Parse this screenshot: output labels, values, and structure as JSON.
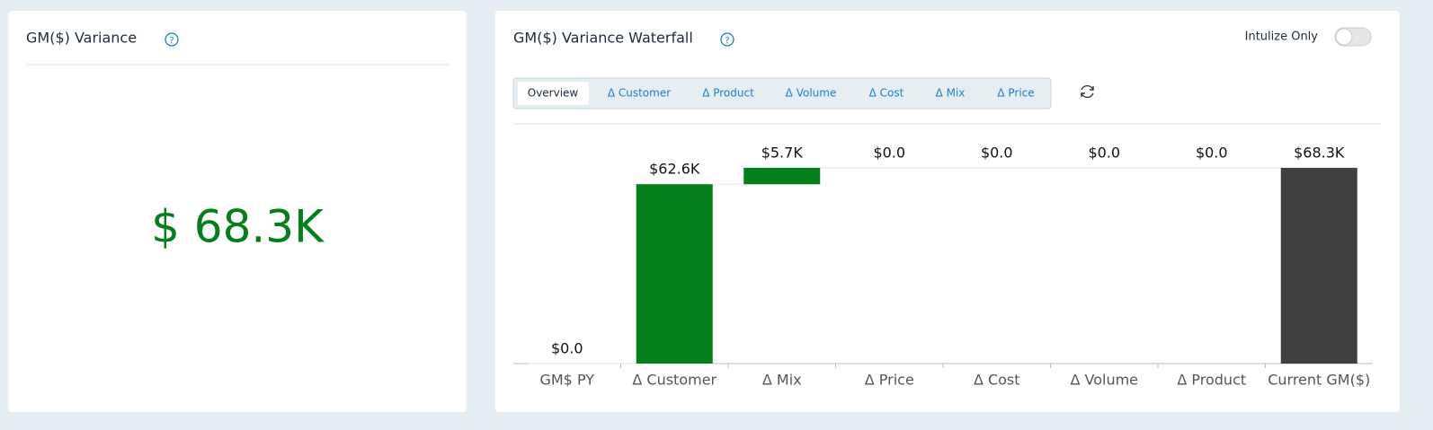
{
  "variance_card": {
    "title": "GM($) Variance",
    "value": "$ 68.3K"
  },
  "waterfall_card": {
    "title": "GM($) Variance Waterfall",
    "toggle_label": "Intulize Only",
    "tabs": [
      "Overview",
      "Δ Customer",
      "Δ Product",
      "Δ Volume",
      "Δ Cost",
      "Δ Mix",
      "Δ Price"
    ]
  },
  "chart_data": {
    "type": "waterfall",
    "categories": [
      "GM$ PY",
      "Δ Customer",
      "Δ Mix",
      "Δ Price",
      "Δ Cost",
      "Δ Volume",
      "Δ Product",
      "Current GM($)"
    ],
    "values": [
      0,
      62.6,
      5.7,
      0,
      0,
      0,
      0,
      68.3
    ],
    "value_labels": [
      "$0.0",
      "$62.6K",
      "$5.7K",
      "$0.0",
      "$0.0",
      "$0.0",
      "$0.0",
      "$68.3K"
    ],
    "color": "#038019",
    "total_color": "#404040"
  }
}
